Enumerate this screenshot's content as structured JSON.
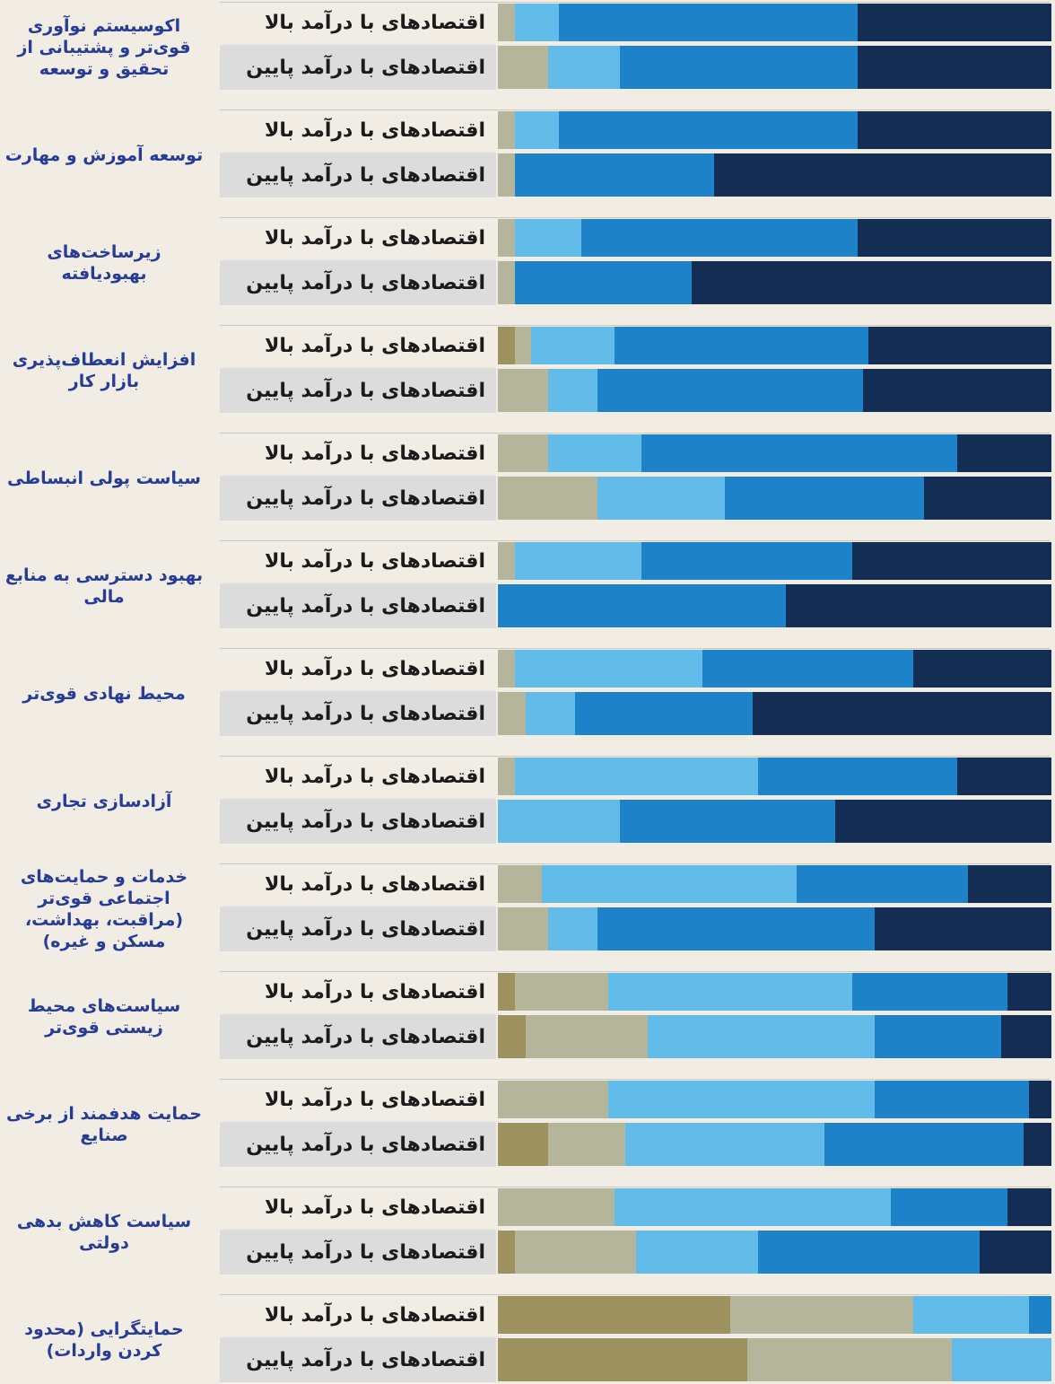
{
  "chart_data": {
    "type": "stacked-bar-horizontal",
    "groups": [
      "اکوسیستم نوآوری قوی‌تر و پشتیبانی از تحقیق و توسعه",
      "توسعه آموزش و مهارت",
      "زیرساخت‌های بهبودیافته",
      "افزایش انعطاف‌پذیری بازار کار",
      "سیاست پولی انبساطی",
      "بهبود دسترسی به منابع مالی",
      "محیط نهادی قوی‌تر",
      "آزادسازی تجاری",
      "خدمات و حمایت‌های اجتماعی قوی‌تر (مراقبت، بهداشت، مسکن و غیره)",
      "سیاست‌های محیط زیستی قوی‌تر",
      "حمایت هدفمند از برخی صنایع",
      "سیاست کاهش بدهی دولتی",
      "حمایتگرایی (محدود کردن واردات)"
    ],
    "categories": [
      "اقتصادهای با درآمد بالا",
      "اقتصادهای با درآمد پایین",
      "اقتصادهای با درآمد بالا",
      "اقتصادهای با درآمد پایین",
      "اقتصادهای با درآمد بالا",
      "اقتصادهای با درآمد پایین",
      "اقتصادهای با درآمد بالا",
      "اقتصادهای با درآمد پایین",
      "اقتصادهای با درآمد بالا",
      "اقتصادهای با درآمد پایین",
      "اقتصادهای با درآمد بالا",
      "اقتصادهای با درآمد پایین",
      "اقتصادهای با درآمد بالا",
      "اقتصادهای با درآمد پایین",
      "اقتصادهای با درآمد بالا",
      "اقتصادهای با درآمد پایین",
      "اقتصادهای با درآمد بالا",
      "اقتصادهای با درآمد پایین",
      "اقتصادهای با درآمد بالا",
      "اقتصادهای با درآمد پایین",
      "اقتصادهای با درآمد بالا",
      "اقتصادهای با درآمد پایین",
      "اقتصادهای با درآمد بالا",
      "اقتصادهای با درآمد پایین",
      "اقتصادهای با درآمد بالا",
      "اقتصادهای با درآمد پایین"
    ],
    "series": [
      {
        "color": "#9c915f",
        "values": [
          0,
          0,
          0,
          0,
          0,
          0,
          3,
          0,
          0,
          0,
          0,
          0,
          0,
          0,
          0,
          0,
          0,
          0,
          3,
          5,
          0,
          9,
          0,
          3,
          42,
          45
        ]
      },
      {
        "color": "#b5b59b",
        "values": [
          3,
          9,
          3,
          3,
          3,
          3,
          3,
          9,
          9,
          18,
          3,
          0,
          3,
          5,
          3,
          0,
          8,
          9,
          17,
          22,
          20,
          14,
          21,
          22,
          33,
          37
        ]
      },
      {
        "color": "#63bbe9",
        "values": [
          8,
          13,
          8,
          0,
          12,
          0,
          15,
          9,
          17,
          23,
          23,
          0,
          34,
          9,
          44,
          22,
          46,
          9,
          44,
          41,
          48,
          36,
          50,
          22,
          21,
          18
        ]
      },
      {
        "color": "#1e82c8",
        "values": [
          54,
          43,
          54,
          36,
          50,
          32,
          46,
          48,
          57,
          36,
          38,
          52,
          38,
          32,
          36,
          39,
          31,
          50,
          28,
          23,
          28,
          36,
          21,
          40,
          4,
          0
        ]
      },
      {
        "color": "#142d55",
        "values": [
          35,
          35,
          35,
          61,
          35,
          65,
          33,
          34,
          17,
          23,
          36,
          48,
          25,
          54,
          17,
          39,
          15,
          32,
          8,
          9,
          4,
          5,
          8,
          13,
          0,
          0
        ]
      }
    ],
    "xlim": [
      0,
      100
    ]
  }
}
